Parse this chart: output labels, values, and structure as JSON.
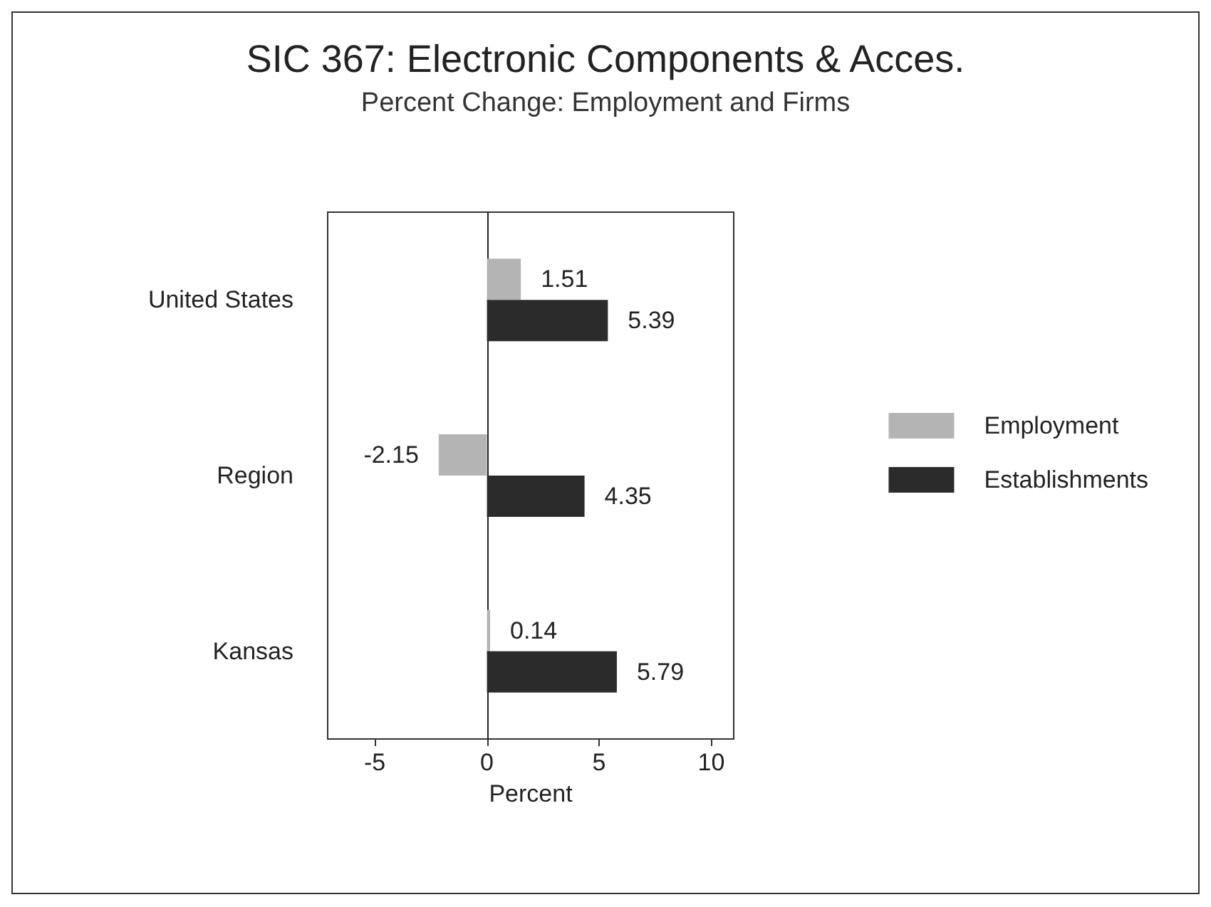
{
  "chart_data": {
    "type": "bar",
    "orientation": "horizontal",
    "title": "SIC 367: Electronic Components & Acces.",
    "subtitle": "Percent Change: Employment and Firms",
    "xlabel": "Percent",
    "categories": [
      "United States",
      "Region",
      "Kansas"
    ],
    "series": [
      {
        "name": "Employment",
        "color": "#b4b4b4",
        "values": [
          1.51,
          -2.15,
          0.14
        ]
      },
      {
        "name": "Establishments",
        "color": "#2b2b2b",
        "values": [
          5.39,
          4.35,
          5.79
        ]
      }
    ],
    "xlim": [
      -7.1,
      11
    ],
    "xticks": [
      -5,
      0,
      5,
      10
    ],
    "data_labels": true,
    "legend": "right"
  }
}
